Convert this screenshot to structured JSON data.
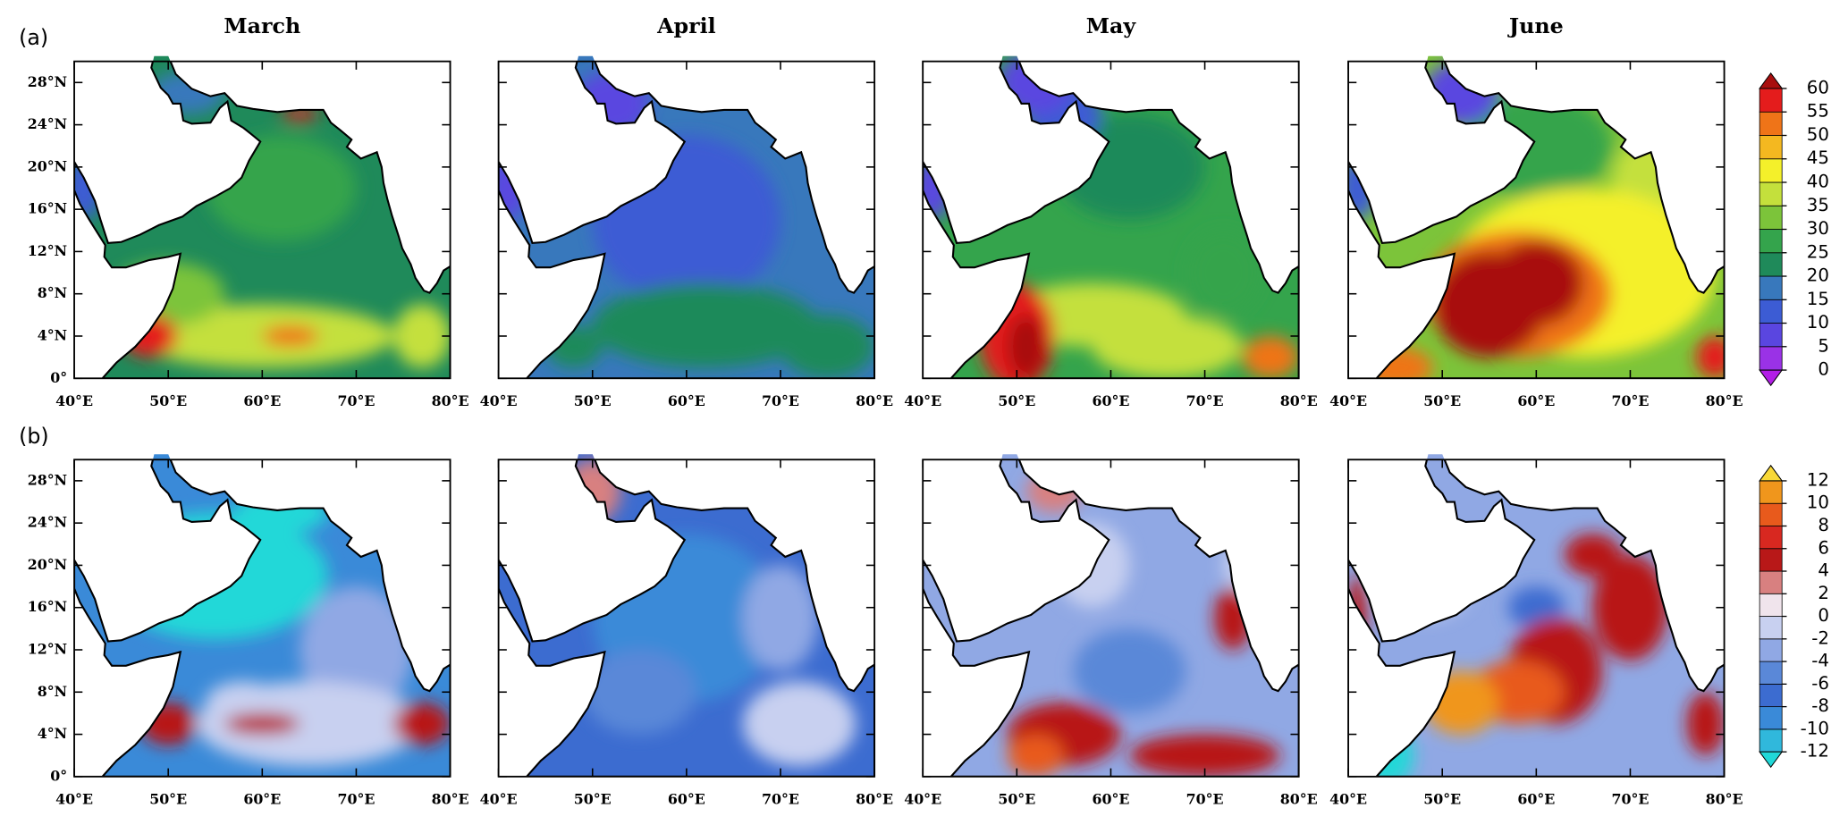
{
  "months": [
    "March",
    "April",
    "May",
    "June"
  ],
  "xlim": [
    40,
    80
  ],
  "ylim": [
    0,
    30
  ],
  "xticks": [
    {
      "value": 40,
      "label": "40°E"
    },
    {
      "value": 50,
      "label": "50°E"
    },
    {
      "value": 60,
      "label": "60°E"
    },
    {
      "value": 70,
      "label": "70°E"
    },
    {
      "value": 80,
      "label": "80°E"
    }
  ],
  "yticks": [
    {
      "value": 0,
      "label": "0°"
    },
    {
      "value": 4,
      "label": "4°N"
    },
    {
      "value": 8,
      "label": "8°N"
    },
    {
      "value": 12,
      "label": "12°N"
    },
    {
      "value": 16,
      "label": "16°N"
    },
    {
      "value": 20,
      "label": "20°N"
    },
    {
      "value": 24,
      "label": "24°N"
    },
    {
      "value": 28,
      "label": "28°N"
    }
  ],
  "rows": [
    {
      "label": "(a)",
      "colorbar": {
        "ticks": [
          0,
          5,
          10,
          15,
          20,
          25,
          30,
          35,
          40,
          45,
          50,
          55,
          60
        ],
        "colors": [
          "#b21ee6",
          "#9a32e6",
          "#5a46e0",
          "#3c5cd4",
          "#3878bc",
          "#1f8a5a",
          "#34a44c",
          "#7cc43a",
          "#c4e03c",
          "#f4f02a",
          "#f4b820",
          "#ef7418",
          "#e41c1c",
          "#a80e0e"
        ]
      }
    },
    {
      "label": "(b)",
      "colorbar": {
        "ticks": [
          -12,
          -10,
          -8,
          -6,
          -4,
          -2,
          0,
          2,
          4,
          6,
          8,
          10,
          12
        ],
        "colors": [
          "#20d8d8",
          "#30b8dc",
          "#3a8ad8",
          "#3c6cd0",
          "#5a88d8",
          "#90a8e4",
          "#c8d0f0",
          "#f0e4ec",
          "#d88080",
          "#b81818",
          "#d82820",
          "#e85a1c",
          "#f0961c",
          "#f8d838"
        ]
      }
    }
  ]
}
